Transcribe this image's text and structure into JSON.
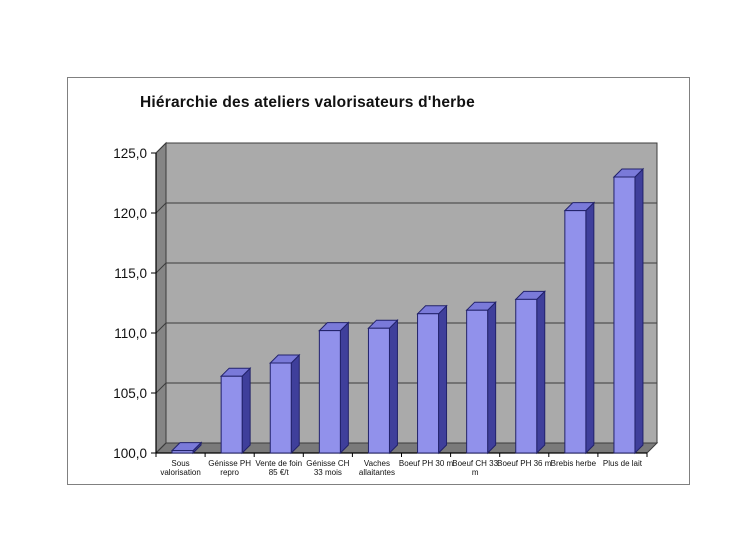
{
  "chart_data": {
    "type": "bar",
    "style": "3d-column",
    "title": "Hiérarchie des ateliers valorisateurs d'herbe",
    "categories": [
      "Sous valorisation",
      "Génisse PH repro",
      "Vente de foin 85 €/t",
      "Génisse CH 33 mois",
      "Vaches allaitantes",
      "Boeuf PH 30 m",
      "Boeuf CH 33 m",
      "Boeuf PH 36 m",
      "Brebis herbe",
      "Plus de lait"
    ],
    "category_label_lines": [
      [
        "Sous",
        "valorisation"
      ],
      [
        "Génisse PH",
        "repro"
      ],
      [
        "Vente de foin",
        "85 €/t"
      ],
      [
        "Génisse CH",
        "33 mois"
      ],
      [
        "Vaches",
        "allaitantes"
      ],
      [
        "Boeuf PH 30 m"
      ],
      [
        "Boeuf CH 33",
        "m"
      ],
      [
        "Boeuf PH 36 m"
      ],
      [
        "Brebis herbe"
      ],
      [
        "Plus de lait"
      ]
    ],
    "values": [
      100.2,
      106.4,
      107.5,
      110.2,
      110.4,
      111.6,
      111.9,
      112.8,
      120.2,
      123.0
    ],
    "xlabel": "",
    "ylabel": "",
    "ylim": [
      100.0,
      125.0
    ],
    "ytick_step": 5.0,
    "ytick_labels": [
      "100,0",
      "105,0",
      "110,0",
      "115,0",
      "120,0",
      "125,0"
    ],
    "grid": true,
    "legend": false,
    "colors": {
      "bar_front": "#9191eb",
      "bar_top": "#7a7ad9",
      "bar_side": "#3f3f9b",
      "bar_outline": "#22226a",
      "wall_back": "#aaaaaa",
      "wall_side": "#858585",
      "floor": "#7a7a7a",
      "gridline": "#3c3c3c",
      "axis": "#000000",
      "text": "#111111"
    }
  }
}
